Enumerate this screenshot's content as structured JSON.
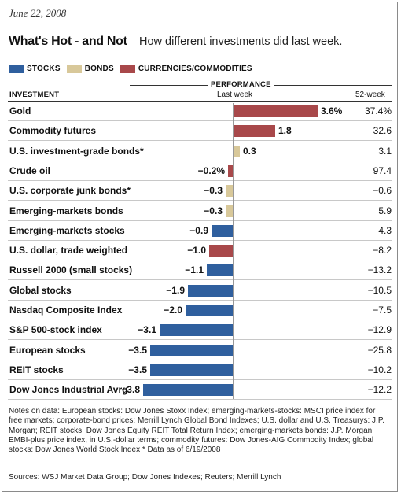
{
  "date": "June 22, 2008",
  "title": "What's Hot - and Not",
  "subtitle": "How different investments did last week.",
  "legend": [
    {
      "label": "STOCKS",
      "color": "#2f5f9e"
    },
    {
      "label": "BONDS",
      "color": "#d8c89a"
    },
    {
      "label": "CURRENCIES/COMMODITIES",
      "color": "#a8484a"
    }
  ],
  "headers": {
    "performance": "PERFORMANCE",
    "investment": "INVESTMENT",
    "last_week": "Last week",
    "week52": "52-week"
  },
  "chart_data": {
    "type": "bar",
    "orientation": "horizontal",
    "title": "What's Hot - and Not",
    "subtitle": "How different investments did last week.",
    "value_unit": "%",
    "categories": [
      "Gold",
      "Commodity futures",
      "U.S. investment-grade bonds*",
      "Crude oil",
      "U.S. corporate junk bonds*",
      "Emerging-markets bonds",
      "Emerging-markets stocks",
      "U.S. dollar, trade weighted",
      "Russell 2000 (small stocks)",
      "Global stocks",
      "Nasdaq Composite Index",
      "S&P 500-stock index",
      "European stocks",
      "REIT stocks",
      "Dow Jones Industrial Avrg"
    ],
    "last_week": [
      3.6,
      1.8,
      0.3,
      -0.2,
      -0.3,
      -0.3,
      -0.9,
      -1.0,
      -1.1,
      -1.9,
      -2.0,
      -3.1,
      -3.5,
      -3.5,
      -3.8
    ],
    "last_week_labels": [
      "3.6%",
      "1.8",
      "0.3",
      "−0.2%",
      "−0.3",
      "−0.3",
      "−0.9",
      "−1.0",
      "−1.1",
      "−1.9",
      "−2.0",
      "−3.1",
      "−3.5",
      "−3.5",
      "−3.8"
    ],
    "week52": [
      "37.4%",
      "32.6",
      "3.1",
      "97.4",
      "−0.6",
      "5.9",
      "4.3",
      "−8.2",
      "−13.2",
      "−10.5",
      "−7.5",
      "−12.9",
      "−25.8",
      "−10.2",
      "−12.2"
    ],
    "groups": [
      "CURRENCIES/COMMODITIES",
      "CURRENCIES/COMMODITIES",
      "BONDS",
      "CURRENCIES/COMMODITIES",
      "BONDS",
      "BONDS",
      "STOCKS",
      "CURRENCIES/COMMODITIES",
      "STOCKS",
      "STOCKS",
      "STOCKS",
      "STOCKS",
      "STOCKS",
      "STOCKS",
      "STOCKS"
    ],
    "colors": {
      "STOCKS": "#2f5f9e",
      "BONDS": "#d8c89a",
      "CURRENCIES/COMMODITIES": "#a8484a"
    },
    "xlim": [
      -3.8,
      3.6
    ],
    "grid": false,
    "legend_position": "top-left"
  },
  "notes": "Notes on data: European stocks: Dow Jones Stoxx Index; emerging-markets-stocks: MSCI price index for free markets; corporate-bond prices: Merrill Lynch Global Bond Indexes; U.S. dollar and U.S. Treasurys: J.P. Morgan; REIT stocks: Dow Jones Equity REIT Total Return Index; emerging-markets bonds: J.P. Morgan EMBI-plus price index, in U.S.-dollar terms; commodity futures: Dow Jones-AIG Commodity Index; global stocks: Dow Jones World Stock Index   * Data as of 6/19/2008",
  "sources": "Sources: WSJ Market Data Group; Dow Jones Indexes; Reuters; Merrill Lynch"
}
